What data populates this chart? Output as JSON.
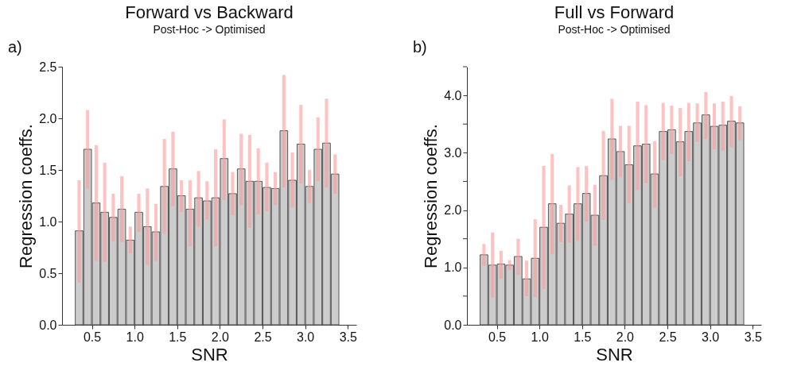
{
  "chart_data": [
    {
      "type": "bar",
      "title": "Forward vs Backward",
      "subtitle": "Post-Hoc -> Optimised",
      "xlabel": "SNR",
      "ylabel": "Regression coeffs.",
      "annotations": [
        "a)"
      ],
      "x": [
        0.35,
        0.45,
        0.55,
        0.65,
        0.75,
        0.85,
        0.95,
        1.05,
        1.15,
        1.25,
        1.35,
        1.45,
        1.55,
        1.65,
        1.75,
        1.85,
        1.95,
        2.05,
        2.15,
        2.25,
        2.35,
        2.45,
        2.55,
        2.65,
        2.75,
        2.85,
        2.95,
        3.05,
        3.15,
        3.25,
        3.35
      ],
      "series": [
        {
          "color": "#cccccc",
          "values": [
            0.91,
            1.7,
            1.18,
            1.09,
            1.04,
            1.12,
            0.82,
            1.09,
            0.95,
            0.9,
            1.34,
            1.51,
            1.25,
            1.12,
            1.23,
            1.2,
            1.23,
            1.61,
            1.27,
            1.51,
            1.39,
            1.39,
            1.33,
            1.32,
            1.88,
            1.4,
            1.75,
            1.34,
            1.7,
            1.76,
            1.46
          ],
          "errors": [
            [
              0.41,
              1.4
            ],
            [
              1.32,
              2.08
            ],
            [
              0.62,
              1.74
            ],
            [
              0.61,
              1.57
            ],
            [
              0.81,
              1.27
            ],
            [
              0.8,
              1.44
            ],
            [
              0.69,
              0.95
            ],
            [
              0.9,
              1.27
            ],
            [
              0.58,
              1.32
            ],
            [
              0.62,
              1.17
            ],
            [
              0.88,
              1.8
            ],
            [
              1.15,
              1.87
            ],
            [
              1.09,
              1.4
            ],
            [
              0.76,
              1.4
            ],
            [
              0.95,
              1.49
            ],
            [
              1.02,
              1.39
            ],
            [
              0.76,
              1.7
            ],
            [
              1.21,
              1.99
            ],
            [
              1.06,
              1.48
            ],
            [
              1.16,
              1.85
            ],
            [
              0.94,
              1.84
            ],
            [
              1.07,
              1.71
            ],
            [
              1.1,
              1.57
            ],
            [
              1.16,
              1.48
            ],
            [
              1.33,
              2.42
            ],
            [
              1.14,
              1.67
            ],
            [
              1.37,
              2.13
            ],
            [
              1.18,
              1.5
            ],
            [
              1.39,
              2.01
            ],
            [
              1.33,
              2.19
            ],
            [
              1.27,
              1.65
            ]
          ]
        }
      ],
      "xlim": [
        0.15,
        3.6
      ],
      "xticks": [
        0.5,
        {
          "value": 1,
          "label": "1.0"
        },
        1.5,
        {
          "value": 2,
          "label": "2.0"
        },
        2.5,
        {
          "value": 3,
          "label": "3.0"
        },
        3.5
      ],
      "ylim": [
        0,
        2.5
      ],
      "yticks": [
        {
          "value": 0,
          "label": "0.0"
        },
        0.5,
        {
          "value": 1,
          "label": "1.0"
        },
        1.5,
        {
          "value": 2,
          "label": "2.0"
        },
        2.5
      ]
    },
    {
      "type": "bar",
      "title": "Full vs Forward",
      "subtitle": "Post-Hoc -> Optimised",
      "xlabel": "SNR",
      "ylabel": "Regression coeffs.",
      "annotations": [
        "b)"
      ],
      "x": [
        0.35,
        0.45,
        0.55,
        0.65,
        0.75,
        0.85,
        0.95,
        1.05,
        1.15,
        1.25,
        1.35,
        1.45,
        1.55,
        1.65,
        1.75,
        1.85,
        1.95,
        2.05,
        2.15,
        2.25,
        2.35,
        2.45,
        2.55,
        2.65,
        2.75,
        2.85,
        2.95,
        3.05,
        3.15,
        3.25,
        3.35
      ],
      "series": [
        {
          "color": "#cccccc",
          "values": [
            1.22,
            1.04,
            1.06,
            1.04,
            1.19,
            0.8,
            1.16,
            1.7,
            2.11,
            1.77,
            1.93,
            2.11,
            2.29,
            1.91,
            2.6,
            3.24,
            3.02,
            2.79,
            3.12,
            3.15,
            2.63,
            3.37,
            3.4,
            3.19,
            3.37,
            3.52,
            3.66,
            3.46,
            3.48,
            3.55,
            3.52
          ],
          "errors": [
            [
              1.03,
              1.41
            ],
            [
              0.47,
              1.61
            ],
            [
              0.8,
              1.29
            ],
            [
              0.96,
              1.13
            ],
            [
              0.87,
              1.5
            ],
            [
              0.5,
              1.12
            ],
            [
              0.48,
              1.84
            ],
            [
              0.62,
              2.77
            ],
            [
              1.23,
              2.98
            ],
            [
              1.44,
              2.09
            ],
            [
              1.43,
              2.43
            ],
            [
              1.46,
              2.75
            ],
            [
              1.8,
              2.77
            ],
            [
              1.38,
              2.44
            ],
            [
              1.83,
              3.38
            ],
            [
              2.53,
              3.94
            ],
            [
              2.57,
              3.47
            ],
            [
              2.12,
              3.47
            ],
            [
              2.35,
              3.89
            ],
            [
              2.47,
              3.83
            ],
            [
              2.04,
              3.2
            ],
            [
              2.87,
              3.87
            ],
            [
              2.98,
              3.82
            ],
            [
              2.59,
              3.78
            ],
            [
              2.85,
              3.87
            ],
            [
              3.19,
              3.86
            ],
            [
              3.24,
              4.06
            ],
            [
              3.06,
              3.86
            ],
            [
              3.04,
              3.89
            ],
            [
              3.1,
              3.99
            ],
            [
              3.22,
              3.81
            ]
          ]
        }
      ],
      "xlim": [
        0.15,
        3.6
      ],
      "xticks": [
        0.5,
        {
          "value": 1,
          "label": "1.0"
        },
        1.5,
        {
          "value": 2,
          "label": "2.0"
        },
        2.5,
        {
          "value": 3,
          "label": "3.0"
        },
        3.5
      ],
      "ylim": [
        0,
        4.5
      ],
      "yticks": [
        {
          "value": 0,
          "label": "0.0"
        },
        {
          "value": 0.5,
          "label": null
        },
        {
          "value": 1,
          "label": "1.0"
        },
        {
          "value": 1.5,
          "label": null
        },
        {
          "value": 2,
          "label": "2.0"
        },
        {
          "value": 2.5,
          "label": null
        },
        {
          "value": 3,
          "label": "3.0"
        },
        {
          "value": 3.5,
          "label": null
        },
        {
          "value": 4,
          "label": "4.0"
        },
        {
          "value": 4.5,
          "label": null
        }
      ]
    }
  ]
}
